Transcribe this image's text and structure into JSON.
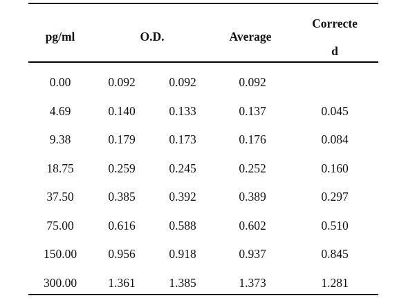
{
  "table": {
    "headers": {
      "concentration": "pg/ml",
      "od": "O.D.",
      "average": "Average",
      "corrected_line1": "Correcte",
      "corrected_line2": "d"
    },
    "rows": [
      {
        "conc": "0.00",
        "od1": "0.092",
        "od2": "0.092",
        "avg": "0.092",
        "corr": ""
      },
      {
        "conc": "4.69",
        "od1": "0.140",
        "od2": "0.133",
        "avg": "0.137",
        "corr": "0.045"
      },
      {
        "conc": "9.38",
        "od1": "0.179",
        "od2": "0.173",
        "avg": "0.176",
        "corr": "0.084"
      },
      {
        "conc": "18.75",
        "od1": "0.259",
        "od2": "0.245",
        "avg": "0.252",
        "corr": "0.160"
      },
      {
        "conc": "37.50",
        "od1": "0.385",
        "od2": "0.392",
        "avg": "0.389",
        "corr": "0.297"
      },
      {
        "conc": "75.00",
        "od1": "0.616",
        "od2": "0.588",
        "avg": "0.602",
        "corr": "0.510"
      },
      {
        "conc": "150.00",
        "od1": "0.956",
        "od2": "0.918",
        "avg": "0.937",
        "corr": "0.845"
      },
      {
        "conc": "300.00",
        "od1": "1.361",
        "od2": "1.385",
        "avg": "1.373",
        "corr": "1.281"
      }
    ]
  }
}
